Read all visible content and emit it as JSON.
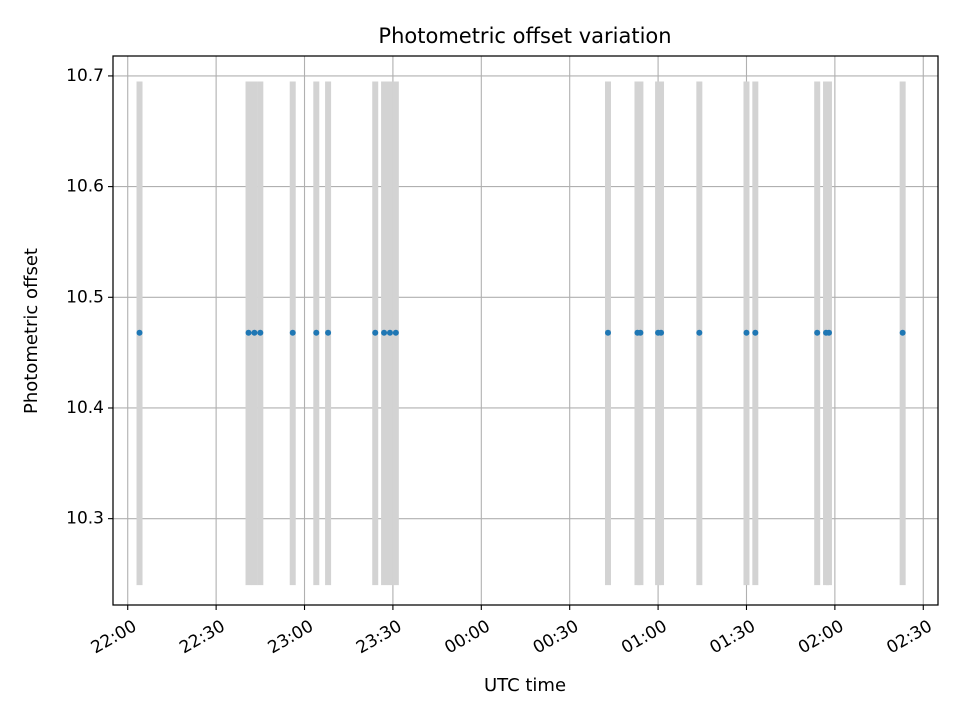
{
  "chart_data": {
    "type": "scatter",
    "title": "Photometric offset variation",
    "xlabel": "UTC time",
    "ylabel": "Photometric offset",
    "grid": true,
    "ylim": [
      10.222,
      10.718
    ],
    "xlim": [
      "21:55",
      "02:35"
    ],
    "x_ticks": [
      "22:00",
      "22:30",
      "23:00",
      "23:30",
      "00:00",
      "00:30",
      "01:00",
      "01:30",
      "02:00",
      "02:30"
    ],
    "y_ticks": [
      10.3,
      10.4,
      10.5,
      10.6,
      10.7
    ],
    "errorbar": {
      "low": 10.24,
      "high": 10.695,
      "color": "#d3d3d3"
    },
    "point_color": "#1f77b4",
    "points": [
      {
        "x": "22:04",
        "y": 10.468
      },
      {
        "x": "22:41",
        "y": 10.468
      },
      {
        "x": "22:43",
        "y": 10.468
      },
      {
        "x": "22:45",
        "y": 10.468
      },
      {
        "x": "22:56",
        "y": 10.468
      },
      {
        "x": "23:04",
        "y": 10.468
      },
      {
        "x": "23:08",
        "y": 10.468
      },
      {
        "x": "23:24",
        "y": 10.468
      },
      {
        "x": "23:27",
        "y": 10.468
      },
      {
        "x": "23:29",
        "y": 10.468
      },
      {
        "x": "23:31",
        "y": 10.468
      },
      {
        "x": "00:43",
        "y": 10.468
      },
      {
        "x": "00:53",
        "y": 10.468
      },
      {
        "x": "00:54",
        "y": 10.468
      },
      {
        "x": "01:00",
        "y": 10.468
      },
      {
        "x": "01:01",
        "y": 10.468
      },
      {
        "x": "01:14",
        "y": 10.468
      },
      {
        "x": "01:30",
        "y": 10.468
      },
      {
        "x": "01:33",
        "y": 10.468
      },
      {
        "x": "01:54",
        "y": 10.468
      },
      {
        "x": "01:57",
        "y": 10.468
      },
      {
        "x": "01:58",
        "y": 10.468
      },
      {
        "x": "02:23",
        "y": 10.468
      }
    ]
  }
}
